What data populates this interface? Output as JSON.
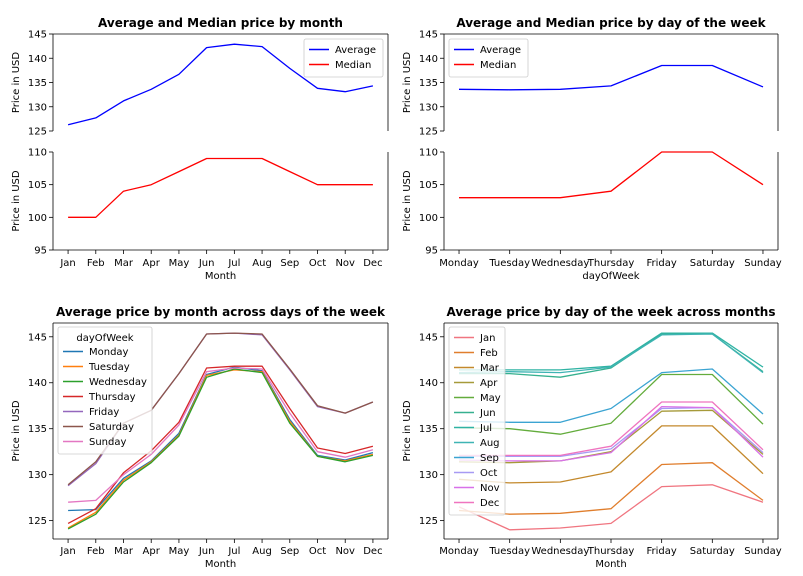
{
  "colors": {
    "average": "#0000ff",
    "median": "#ff0000",
    "tab10": [
      "#1f77b4",
      "#ff7f0e",
      "#2ca02c",
      "#d62728",
      "#9467bd",
      "#8c564b",
      "#e377c2"
    ],
    "months": [
      "#f07580",
      "#e07e2d",
      "#c3892c",
      "#a69a3a",
      "#63ac3c",
      "#36b08f",
      "#2fb3a3",
      "#3fb4b4",
      "#3ba4d2",
      "#a79af3",
      "#d871e9",
      "#ef74bf"
    ]
  },
  "chart_data": [
    {
      "type": "line",
      "title": "Average and Median price by month",
      "xlabel": "Month",
      "ylabel": "Price in USD",
      "categories": [
        "Jan",
        "Feb",
        "Mar",
        "Apr",
        "May",
        "Jun",
        "Jul",
        "Aug",
        "Sep",
        "Oct",
        "Nov",
        "Dec"
      ],
      "broken_axis": true,
      "ylim_top": [
        125,
        145
      ],
      "yticks_top": [
        125,
        130,
        135,
        140,
        145
      ],
      "ylim_bottom": [
        95,
        110
      ],
      "yticks_bottom": [
        95,
        100,
        105,
        110
      ],
      "legend": "upper right",
      "series": [
        {
          "name": "Average",
          "color": "average",
          "panel": "top",
          "values": [
            126.3,
            127.7,
            131.2,
            133.6,
            136.7,
            142.2,
            142.9,
            142.4,
            137.9,
            133.8,
            133.1,
            134.3
          ]
        },
        {
          "name": "Median",
          "color": "median",
          "panel": "bottom",
          "values": [
            100,
            100,
            104,
            105,
            107,
            109,
            109,
            109,
            107,
            105,
            105,
            105
          ]
        }
      ]
    },
    {
      "type": "line",
      "title": "Average and Median price by day of the week",
      "xlabel": "dayOfWeek",
      "ylabel": "Price in USD",
      "categories": [
        "Monday",
        "Tuesday",
        "Wednesday",
        "Thursday",
        "Friday",
        "Saturday",
        "Sunday"
      ],
      "broken_axis": true,
      "ylim_top": [
        125,
        145
      ],
      "yticks_top": [
        125,
        130,
        135,
        140,
        145
      ],
      "ylim_bottom": [
        95,
        110
      ],
      "yticks_bottom": [
        95,
        100,
        105,
        110
      ],
      "legend": "upper left",
      "series": [
        {
          "name": "Average",
          "color": "average",
          "panel": "top",
          "values": [
            133.6,
            133.5,
            133.6,
            134.3,
            138.5,
            138.5,
            134.1
          ]
        },
        {
          "name": "Median",
          "color": "median",
          "panel": "bottom",
          "values": [
            103,
            103,
            103,
            104,
            110,
            110,
            105
          ]
        }
      ]
    },
    {
      "type": "line",
      "title": "Average price by month across days of the week",
      "xlabel": "Month",
      "ylabel": "Price in USD",
      "categories": [
        "Jan",
        "Feb",
        "Mar",
        "Apr",
        "May",
        "Jun",
        "Jul",
        "Aug",
        "Sep",
        "Oct",
        "Nov",
        "Dec"
      ],
      "ylim": [
        123,
        146.5
      ],
      "yticks": [
        125,
        130,
        135,
        140,
        145
      ],
      "legend": "upper left",
      "legend_title": "dayOfWeek",
      "series": [
        {
          "name": "Monday",
          "values": [
            126.1,
            126.2,
            129.6,
            131.5,
            134.5,
            140.9,
            141.7,
            141.3,
            136.0,
            132.1,
            131.6,
            132.4
          ]
        },
        {
          "name": "Tuesday",
          "values": [
            124.2,
            125.9,
            129.4,
            131.4,
            134.3,
            140.8,
            141.4,
            141.2,
            135.8,
            132.0,
            131.5,
            132.2
          ]
        },
        {
          "name": "Wednesday",
          "values": [
            124.1,
            125.7,
            129.2,
            131.3,
            134.2,
            140.6,
            141.5,
            141.1,
            135.6,
            132.0,
            131.4,
            132.1
          ]
        },
        {
          "name": "Thursday",
          "values": [
            124.7,
            126.3,
            130.2,
            132.6,
            135.7,
            141.6,
            141.8,
            141.8,
            137.2,
            132.9,
            132.3,
            133.1
          ]
        },
        {
          "name": "Friday",
          "values": [
            128.8,
            131.2,
            135.6,
            137.0,
            141.0,
            145.3,
            145.4,
            145.2,
            141.4,
            137.4,
            136.7,
            137.9
          ]
        },
        {
          "name": "Saturday",
          "values": [
            128.9,
            131.4,
            135.6,
            137.0,
            141.0,
            145.3,
            145.4,
            145.3,
            141.5,
            137.5,
            136.7,
            137.9
          ]
        },
        {
          "name": "Sunday",
          "values": [
            127.0,
            127.2,
            130.0,
            132.2,
            135.4,
            141.2,
            141.6,
            141.5,
            136.7,
            132.5,
            131.9,
            132.7
          ]
        }
      ]
    },
    {
      "type": "line",
      "title": "Average price by day of the week across months",
      "xlabel": "Month",
      "ylabel": "Price in USD",
      "categories": [
        "Monday",
        "Tuesday",
        "Wednesday",
        "Thursday",
        "Friday",
        "Saturday",
        "Sunday"
      ],
      "ylim": [
        123,
        146.5
      ],
      "yticks": [
        125,
        130,
        135,
        140,
        145
      ],
      "legend": "upper left",
      "series": [
        {
          "name": "Jan",
          "values": [
            126.5,
            124.0,
            124.2,
            124.7,
            128.7,
            128.9,
            127.0
          ]
        },
        {
          "name": "Feb",
          "values": [
            126.1,
            125.7,
            125.8,
            126.3,
            131.1,
            131.3,
            127.2
          ]
        },
        {
          "name": "Mar",
          "values": [
            129.5,
            129.1,
            129.2,
            130.3,
            135.3,
            135.3,
            130.1
          ]
        },
        {
          "name": "Apr",
          "values": [
            131.4,
            131.3,
            131.5,
            132.5,
            136.9,
            137.0,
            132.2
          ]
        },
        {
          "name": "May",
          "values": [
            135.1,
            135.0,
            134.4,
            135.6,
            140.9,
            140.9,
            135.5
          ]
        },
        {
          "name": "Jun",
          "values": [
            141.0,
            141.0,
            140.6,
            141.6,
            145.3,
            145.3,
            141.2
          ]
        },
        {
          "name": "Jul",
          "values": [
            141.4,
            141.4,
            141.4,
            141.8,
            145.4,
            145.4,
            141.7
          ]
        },
        {
          "name": "Aug",
          "values": [
            141.1,
            141.2,
            141.1,
            141.7,
            145.2,
            145.3,
            141.1
          ]
        },
        {
          "name": "Sep",
          "values": [
            135.8,
            135.7,
            135.7,
            137.2,
            141.1,
            141.5,
            136.6
          ]
        },
        {
          "name": "Oct",
          "values": [
            132.0,
            132.0,
            132.0,
            132.8,
            137.2,
            137.3,
            132.4
          ]
        },
        {
          "name": "Nov",
          "values": [
            131.6,
            131.5,
            131.5,
            132.4,
            137.4,
            137.3,
            131.9
          ]
        },
        {
          "name": "Dec",
          "values": [
            132.1,
            132.1,
            132.1,
            133.1,
            137.9,
            137.9,
            132.7
          ]
        }
      ]
    }
  ]
}
